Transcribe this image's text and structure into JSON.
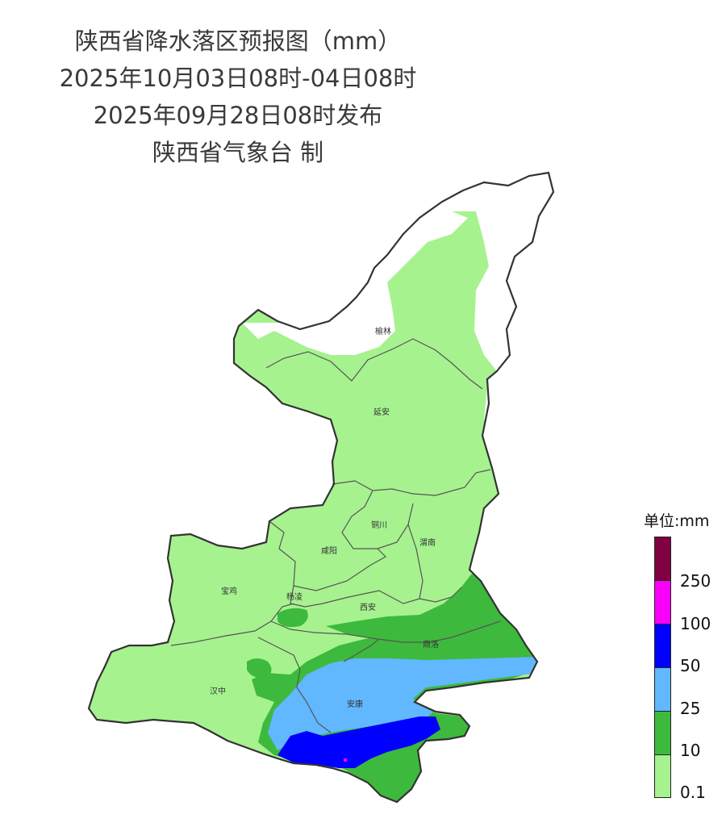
{
  "header": {
    "title": "陕西省降水落区预报图（mm）",
    "valid_period": "2025年10月03日08时-04日08时",
    "issue_time": "2025年09月28日08时发布",
    "issuer": "陕西省气象台 制"
  },
  "map": {
    "cities": [
      "榆林",
      "延安",
      "铜川",
      "咸阳",
      "渭南",
      "宝鸡",
      "杨凌",
      "西安",
      "商洛",
      "汉中",
      "安康"
    ]
  },
  "legend": {
    "unit": "单位:mm",
    "levels": [
      {
        "label": "0.1",
        "color": "#a6f28f"
      },
      {
        "label": "10",
        "color": "#3dba3d"
      },
      {
        "label": "25",
        "color": "#61b8ff"
      },
      {
        "label": "50",
        "color": "#0000ff"
      },
      {
        "label": "100",
        "color": "#fa00fa"
      },
      {
        "label": "250",
        "color": "#800040"
      }
    ]
  }
}
